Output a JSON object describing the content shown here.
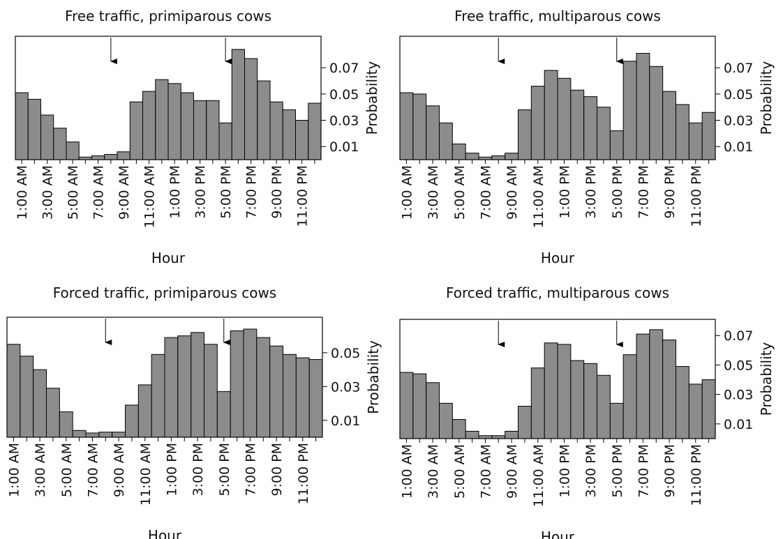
{
  "chart_data": [
    {
      "type": "bar",
      "title": "Free traffic, primiparous cows",
      "x_label": "Hour",
      "y_label": "Probability",
      "categories": [
        "1:00 AM",
        null,
        "3:00 AM",
        null,
        "5:00 AM",
        null,
        "7:00 AM",
        null,
        "9:00 AM",
        null,
        "11:00 AM",
        null,
        "1:00 PM",
        null,
        "3:00 PM",
        null,
        "5:00 PM",
        null,
        "7:00 PM",
        null,
        "9:00 PM",
        null,
        "11:00 PM",
        null
      ],
      "values": [
        0.051,
        0.046,
        0.034,
        0.024,
        0.0135,
        0.002,
        0.003,
        0.004,
        0.006,
        0.044,
        0.052,
        0.061,
        0.058,
        0.051,
        0.045,
        0.045,
        0.028,
        0.084,
        0.077,
        0.06,
        0.044,
        0.038,
        0.03,
        0.043
      ],
      "color": "#8c8c8c",
      "ylim": [
        0,
        0.094
      ],
      "yticks": [
        0.01,
        0.03,
        0.05,
        0.07
      ]
    },
    {
      "type": "bar",
      "title": "Free traffic, multiparous cows",
      "x_label": "Hour",
      "y_label": "Probability",
      "categories": [
        "1:00 AM",
        null,
        "3:00 AM",
        null,
        "5:00 AM",
        null,
        "7:00 AM",
        null,
        "9:00 AM",
        null,
        "11:00 AM",
        null,
        "1:00 PM",
        null,
        "3:00 PM",
        null,
        "5:00 PM",
        null,
        "7:00 PM",
        null,
        "9:00 PM",
        null,
        "11:00 PM",
        null
      ],
      "values": [
        0.051,
        0.05,
        0.041,
        0.028,
        0.012,
        0.005,
        0.002,
        0.003,
        0.005,
        0.038,
        0.056,
        0.068,
        0.062,
        0.053,
        0.048,
        0.04,
        0.022,
        0.075,
        0.081,
        0.071,
        0.052,
        0.042,
        0.028,
        0.036
      ],
      "color": "#8c8c8c",
      "ylim": [
        0,
        0.094
      ],
      "yticks": [
        0.01,
        0.03,
        0.05,
        0.07
      ]
    },
    {
      "type": "bar",
      "title": "Forced traffic, primiparous cows",
      "x_label": "Hour",
      "y_label": "Probability",
      "categories": [
        "1:00 AM",
        null,
        "3:00 AM",
        null,
        "5:00 AM",
        null,
        "7:00 AM",
        null,
        "9:00 AM",
        null,
        "11:00 AM",
        null,
        "1:00 PM",
        null,
        "3:00 PM",
        null,
        "5:00 PM",
        null,
        "7:00 PM",
        null,
        "9:00 PM",
        null,
        "11:00 PM",
        null
      ],
      "values": [
        0.055,
        0.048,
        0.04,
        0.029,
        0.015,
        0.004,
        0.0025,
        0.003,
        0.003,
        0.019,
        0.031,
        0.049,
        0.059,
        0.06,
        0.062,
        0.055,
        0.027,
        0.063,
        0.064,
        0.059,
        0.054,
        0.049,
        0.047,
        0.046
      ],
      "color": "#8c8c8c",
      "ylim": [
        0,
        0.071
      ],
      "yticks": [
        0.01,
        0.03,
        0.05
      ]
    },
    {
      "type": "bar",
      "title": "Forced traffic, multiparous cows",
      "x_label": "Hour",
      "y_label": "Probability",
      "categories": [
        "1:00 AM",
        null,
        "3:00 AM",
        null,
        "5:00 AM",
        null,
        "7:00 AM",
        null,
        "9:00 AM",
        null,
        "11:00 AM",
        null,
        "1:00 PM",
        null,
        "3:00 PM",
        null,
        "5:00 PM",
        null,
        "7:00 PM",
        null,
        "9:00 PM",
        null,
        "11:00 PM",
        null
      ],
      "values": [
        0.045,
        0.044,
        0.038,
        0.024,
        0.013,
        0.005,
        0.002,
        0.002,
        0.005,
        0.022,
        0.048,
        0.065,
        0.064,
        0.053,
        0.051,
        0.043,
        0.024,
        0.057,
        0.071,
        0.074,
        0.067,
        0.049,
        0.037,
        0.04
      ],
      "color": "#8c8c8c",
      "ylim": [
        0,
        0.081
      ],
      "yticks": [
        0.01,
        0.03,
        0.05,
        0.07
      ]
    }
  ]
}
